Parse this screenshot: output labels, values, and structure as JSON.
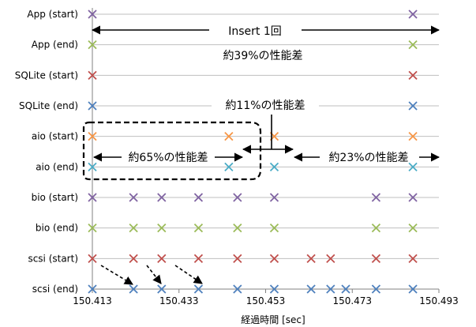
{
  "chart_data": {
    "type": "scatter",
    "xlabel": "経過時間 [sec]",
    "ylabel": "",
    "xlim": [
      150.413,
      150.493
    ],
    "x_ticks": [
      "150.413",
      "150.433",
      "150.453",
      "150.473",
      "150.493"
    ],
    "x_tick_values": [
      150.413,
      150.433,
      150.453,
      150.473,
      150.493
    ],
    "grid": true,
    "marker": "x",
    "series": [
      {
        "name": "App (start)",
        "color": "#8064A2",
        "x": [
          150.413,
          150.487
        ]
      },
      {
        "name": "App (end)",
        "color": "#9BBB59",
        "x": [
          150.413,
          150.487
        ]
      },
      {
        "name": "SQLite (start)",
        "color": "#C0504D",
        "x": [
          150.413,
          150.487
        ]
      },
      {
        "name": "SQLite (end)",
        "color": "#4F81BD",
        "x": [
          150.413,
          150.487
        ]
      },
      {
        "name": "aio (start)",
        "color": "#F79646",
        "x": [
          150.413,
          150.4445,
          150.455,
          150.487
        ]
      },
      {
        "name": "aio (end)",
        "color": "#4BACC6",
        "x": [
          150.413,
          150.4445,
          150.455,
          150.487
        ]
      },
      {
        "name": "bio (start)",
        "color": "#8064A2",
        "x": [
          150.413,
          150.4225,
          150.429,
          150.4375,
          150.4465,
          150.455,
          150.4785,
          150.487
        ]
      },
      {
        "name": "bio (end)",
        "color": "#9BBB59",
        "x": [
          150.413,
          150.4225,
          150.429,
          150.4375,
          150.4465,
          150.455,
          150.4785,
          150.487
        ]
      },
      {
        "name": "scsi (start)",
        "color": "#C0504D",
        "x": [
          150.413,
          150.4225,
          150.429,
          150.4375,
          150.4465,
          150.455,
          150.4635,
          150.468,
          150.4785,
          150.487
        ]
      },
      {
        "name": "scsi (end)",
        "color": "#4F81BD",
        "x": [
          150.413,
          150.4225,
          150.429,
          150.4375,
          150.4465,
          150.455,
          150.4635,
          150.468,
          150.4715,
          150.4785,
          150.487
        ]
      }
    ],
    "annotations": [
      {
        "id": "insert",
        "text": "Insert 1回"
      },
      {
        "id": "app-diff",
        "text": "約39%の性能差"
      },
      {
        "id": "sqlite-diff",
        "text": "約11%の性能差"
      },
      {
        "id": "aio-left",
        "text": "約65%の性能差"
      },
      {
        "id": "aio-right",
        "text": "約23%の性能差"
      }
    ]
  }
}
